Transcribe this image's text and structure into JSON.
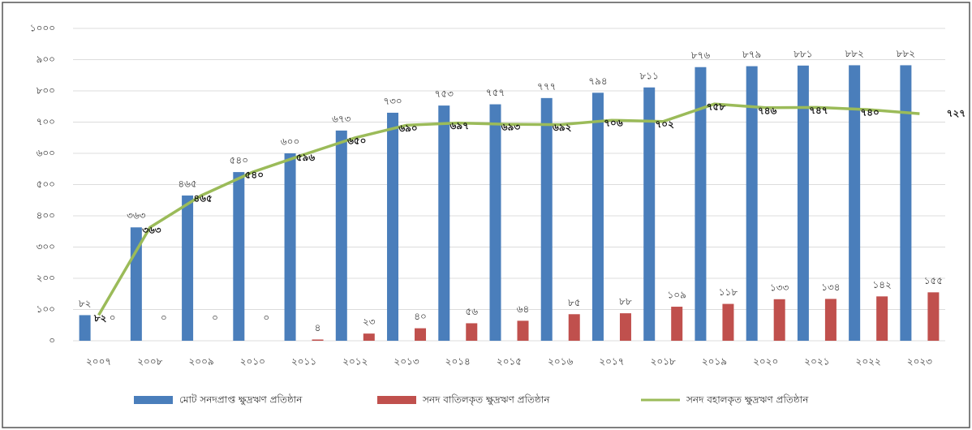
{
  "chart_data": {
    "type": "bar-line",
    "categories": [
      "২০০৭",
      "২০০৮",
      "২০০৯",
      "২০১০",
      "২০১১",
      "২০১২",
      "২০১৩",
      "২০১৪",
      "২০১৫",
      "২০১৬",
      "২০১৭",
      "২০১৮",
      "২০১৯",
      "২০২০",
      "২০২১",
      "২০২২",
      "২০২৩"
    ],
    "ylim": [
      0,
      1000
    ],
    "yticks": [
      {
        "value": 0,
        "label": "০"
      },
      {
        "value": 100,
        "label": "১০০"
      },
      {
        "value": 200,
        "label": "২০০"
      },
      {
        "value": 300,
        "label": "৩০০"
      },
      {
        "value": 400,
        "label": "৪০০"
      },
      {
        "value": 500,
        "label": "৫০০"
      },
      {
        "value": 600,
        "label": "৬০০"
      },
      {
        "value": 700,
        "label": "৭০০"
      },
      {
        "value": 800,
        "label": "৮০০"
      },
      {
        "value": 900,
        "label": "৯০০"
      },
      {
        "value": 1000,
        "label": "১০০০"
      }
    ],
    "grid": true,
    "series": [
      {
        "name": "মোট সনদপ্রাপ্ত ক্ষুদ্রঋণ প্রতিষ্ঠান",
        "color": "#4a7ebb",
        "kind": "bar",
        "values": [
          82,
          363,
          465,
          540,
          600,
          673,
          730,
          753,
          757,
          777,
          794,
          811,
          876,
          879,
          881,
          882,
          882
        ],
        "value_labels": [
          "৮২",
          "৩৬৩",
          "৪৬৫",
          "৫৪০",
          "৬০০",
          "৬৭৩",
          "৭৩০",
          "৭৫৩",
          "৭৫৭",
          "৭৭৭",
          "৭৯৪",
          "৮১১",
          "৮৭৬",
          "৮৭৯",
          "৮৮১",
          "৮৮২",
          "৮৮২"
        ]
      },
      {
        "name": "সনদ বাতিলকৃত ক্ষুদ্রঋণ প্রতিষ্ঠান",
        "color": "#c0504d",
        "kind": "bar",
        "values": [
          0,
          0,
          0,
          0,
          4,
          23,
          40,
          56,
          64,
          85,
          88,
          109,
          118,
          133,
          134,
          142,
          155
        ],
        "value_labels": [
          "০",
          "০",
          "০",
          "০",
          "৪",
          "২৩",
          "৪০",
          "৫৬",
          "৬৪",
          "৮৫",
          "৮৮",
          "১০৯",
          "১১৮",
          "১৩৩",
          "১৩৪",
          "১৪২",
          "১৫৫"
        ]
      },
      {
        "name": "সনদ বহালকৃত ক্ষুদ্রঋণ প্রতিষ্ঠান",
        "color": "#9bbb59",
        "kind": "line",
        "values": [
          82,
          363,
          465,
          540,
          596,
          650,
          690,
          697,
          693,
          692,
          706,
          702,
          758,
          746,
          747,
          740,
          727
        ],
        "value_labels": [
          "৮২",
          "৩৬৩",
          "৪৬৫",
          "৫৪০",
          "৫৯৬",
          "৬৫০",
          "৬৯০",
          "৬৯৭",
          "৬৯৩",
          "৬৯২",
          "৭০৬",
          "৭০২",
          "৭৫৮",
          "৭৪৬",
          "৭৪৭",
          "৭৪০",
          "৭২৭"
        ]
      }
    ]
  }
}
